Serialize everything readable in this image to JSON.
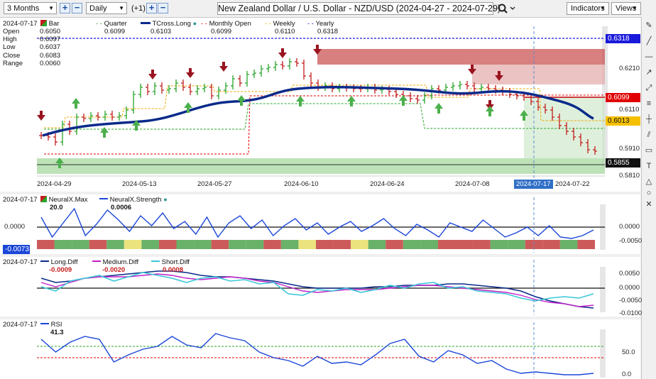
{
  "toolbar": {
    "period": "3 Months",
    "interval": "Daily",
    "step": "(+1)",
    "title": "New Zealand Dollar / U.S. Dollar - NZD/USD (2024-04-27 - 2024-07-29)",
    "indicators": "Indicators",
    "views": "Views"
  },
  "main": {
    "date": "2024-07-17",
    "ohlc": [
      {
        "label": "Open",
        "value": "0.6050"
      },
      {
        "label": "High",
        "value": "0.6097"
      },
      {
        "label": "Low",
        "value": "0.6037"
      },
      {
        "label": "Close",
        "value": "0.6083"
      },
      {
        "label": "Range",
        "value": "0.0060"
      }
    ],
    "legend": [
      {
        "name": "Bar",
        "value": ""
      },
      {
        "name": "Quarter",
        "value": "0.6099"
      },
      {
        "name": "TCross.Long",
        "value": "0.6103"
      },
      {
        "name": "Monthly Open",
        "value": "0.6099"
      },
      {
        "name": "Weekly",
        "value": "0.6110"
      },
      {
        "name": "Yearly",
        "value": "0.6318"
      }
    ],
    "price_ticks": [
      "0.6210",
      "0.6110",
      "0.5910",
      "0.5810"
    ],
    "price_tags": [
      {
        "value": "0.6318",
        "color": "#1a1adb"
      },
      {
        "value": "0.6099",
        "color": "#e00000"
      },
      {
        "value": "0.6013",
        "color": "#f0a800"
      },
      {
        "value": "0.5855",
        "color": "#111111"
      }
    ],
    "dates": [
      "2024-04-29",
      "2024-05-13",
      "2024-05-27",
      "2024-06-10",
      "2024-06-24",
      "2024-07-08",
      "2024-07-22"
    ],
    "crosshair_date": "2024-07-17"
  },
  "neural": {
    "date": "2024-07-17",
    "legend": [
      {
        "name": "NeuralX.Max",
        "value": "20.0"
      },
      {
        "name": "NeuralX.Strength",
        "value": "0.0006"
      }
    ],
    "ticks": [
      "0.0000",
      "-0.0050"
    ],
    "tag": "-0.0073"
  },
  "diff": {
    "date": "2024-07-17",
    "legend": [
      {
        "name": "Long.Diff",
        "value": "-0.0009"
      },
      {
        "name": "Medium.Diff",
        "value": "-0.0020"
      },
      {
        "name": "Short.Diff",
        "value": "0.0008"
      }
    ],
    "ticks": [
      "0.0050",
      "0.0000",
      "-0.0050",
      "-0.0100"
    ]
  },
  "rsi": {
    "date": "2024-07-17",
    "legend": [
      {
        "name": "RSI",
        "value": "41.3"
      }
    ],
    "ticks": [
      "50.0",
      "0.0"
    ]
  },
  "colors": {
    "bull": "#2aa52a",
    "bear": "#c41e1e",
    "tcross": "#0a2a8a",
    "weekly": "#f0a800",
    "quarter": "#2aa52a",
    "monthly": "#e00000",
    "yearly": "#1a1adb"
  },
  "icons": [
    "plus-icon",
    "minus-icon",
    "search-icon",
    "chevron-down-icon",
    "pencil-icon",
    "line-icon",
    "fib-icon",
    "circle-icon",
    "close-icon"
  ]
}
